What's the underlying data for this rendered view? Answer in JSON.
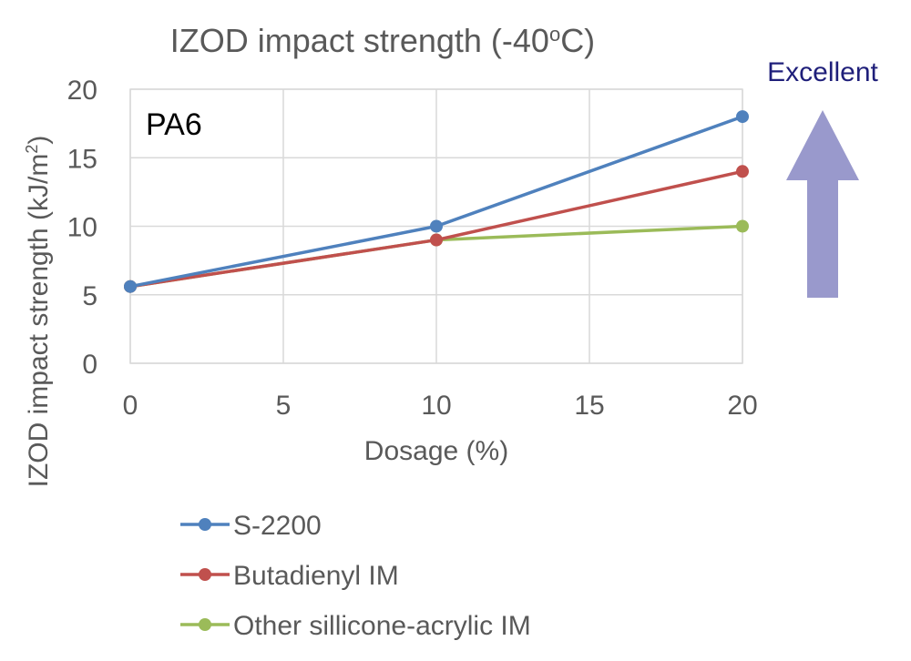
{
  "chart_data": {
    "type": "line",
    "title": "IZOD impact strength (-40",
    "title_superscript": "o",
    "title_suffix": "C)",
    "annotation": "PA6",
    "arrow_label": "Excellent",
    "xlabel": "Dosage (%)",
    "ylabel": "IZOD impact strength (kJ/m",
    "ylabel_superscript": "2",
    "ylabel_suffix": ")",
    "xlim": [
      0,
      20
    ],
    "ylim": [
      0,
      20
    ],
    "x_ticks": [
      "0",
      "5",
      "10",
      "15",
      "20"
    ],
    "y_ticks": [
      "0",
      "5",
      "10",
      "15",
      "20"
    ],
    "grid": true,
    "legend_position": "bottom",
    "series": [
      {
        "name": "S-2200",
        "color": "#4f81bd",
        "x": [
          0,
          10,
          20
        ],
        "y": [
          5.6,
          10,
          18
        ]
      },
      {
        "name": "Butadienyl IM",
        "color": "#c0504d",
        "x": [
          0,
          10,
          20
        ],
        "y": [
          5.6,
          9,
          14
        ]
      },
      {
        "name": "Other sillicone-acrylic IM",
        "color": "#9bbb59",
        "x": [
          0,
          10,
          20
        ],
        "y": [
          5.6,
          9,
          10
        ]
      }
    ],
    "arrow_color": "#9999cc",
    "arrow_label_color": "#1f1f7a"
  }
}
